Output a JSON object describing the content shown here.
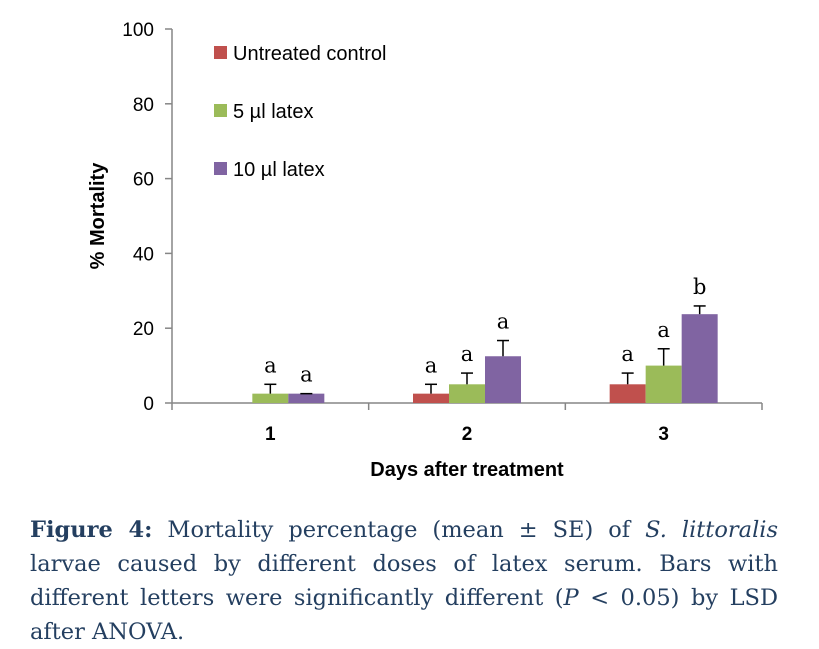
{
  "chart_data": {
    "type": "bar",
    "categories": [
      "1",
      "2",
      "3"
    ],
    "series": [
      {
        "name": "Untreated control",
        "color": "#c0504d",
        "values": [
          0,
          2.5,
          5
        ],
        "errors": [
          0,
          2.5,
          3
        ],
        "letters": [
          "",
          "a",
          "a"
        ]
      },
      {
        "name": "5 µl latex",
        "color": "#9bbb59",
        "values": [
          2.5,
          5,
          10
        ],
        "errors": [
          2.5,
          3,
          4.5
        ],
        "letters": [
          "a",
          "a",
          "a"
        ]
      },
      {
        "name": "10 µl latex",
        "color": "#8064a2",
        "values": [
          2.5,
          12.5,
          23.75
        ],
        "errors": [
          0,
          4.2,
          2.2
        ],
        "letters": [
          "a",
          "a",
          "b"
        ]
      }
    ],
    "xlabel": "Days after treatment",
    "ylabel": "% Mortality",
    "ylim": [
      0,
      100
    ],
    "yticks": [
      0,
      20,
      40,
      60,
      80,
      100
    ],
    "legend_position": "top-left",
    "grid": false
  },
  "caption": {
    "lead": "Figure 4:",
    "text_1": " Mortality percentage (mean ± SE) of ",
    "species": "S. littoralis",
    "text_2": " larvae caused by different doses of latex serum. Bars with different letters were significantly different (",
    "p_symbol": "P",
    "text_3": " < 0.05) by LSD after ANOVA."
  }
}
